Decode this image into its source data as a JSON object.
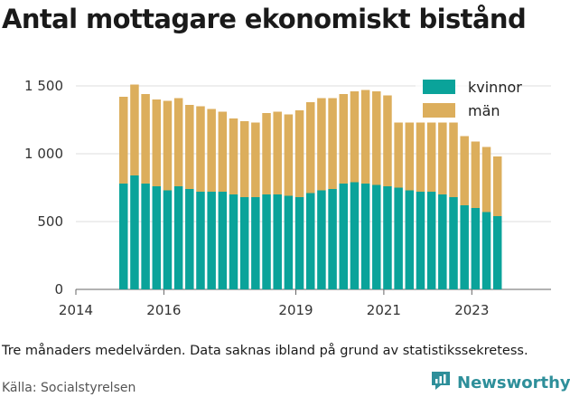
{
  "title": "Antal mottagare ekonomiskt bistånd",
  "note": "Tre månaders medelvärden. Data saknas ibland på grund av statistikssekretess.",
  "source": "Källa: Socialstyrelsen",
  "brand": {
    "name": "Newsworthy",
    "icon": "newsworthy-logo-icon",
    "color": "#2e8f9a"
  },
  "chart_data": {
    "type": "bar",
    "stacked": true,
    "x_start": "2015-01",
    "x_step_months": 3,
    "ylim": [
      0,
      1600
    ],
    "yticks": [
      0,
      500,
      1000,
      1500
    ],
    "ytick_labels": [
      "0",
      "500",
      "1 000",
      "1 500"
    ],
    "xticks": [
      "2014",
      "2016",
      "2019",
      "2021",
      "2023"
    ],
    "legend_position": "top-right",
    "grid": "horizontal",
    "series": [
      {
        "name": "kvinnor",
        "color": "#0aa39a",
        "values": [
          780,
          840,
          780,
          760,
          730,
          760,
          740,
          720,
          720,
          720,
          700,
          680,
          680,
          700,
          700,
          690,
          680,
          710,
          730,
          740,
          780,
          790,
          780,
          770,
          760,
          750,
          730,
          720,
          720,
          700,
          680,
          620,
          600,
          570,
          540
        ]
      },
      {
        "name": "män",
        "color": "#dcae5c",
        "values": [
          640,
          670,
          660,
          640,
          660,
          650,
          620,
          630,
          610,
          590,
          560,
          560,
          550,
          600,
          610,
          600,
          640,
          670,
          680,
          670,
          660,
          670,
          690,
          690,
          670,
          480,
          500,
          510,
          510,
          530,
          550,
          510,
          490,
          480,
          440
        ]
      }
    ]
  }
}
